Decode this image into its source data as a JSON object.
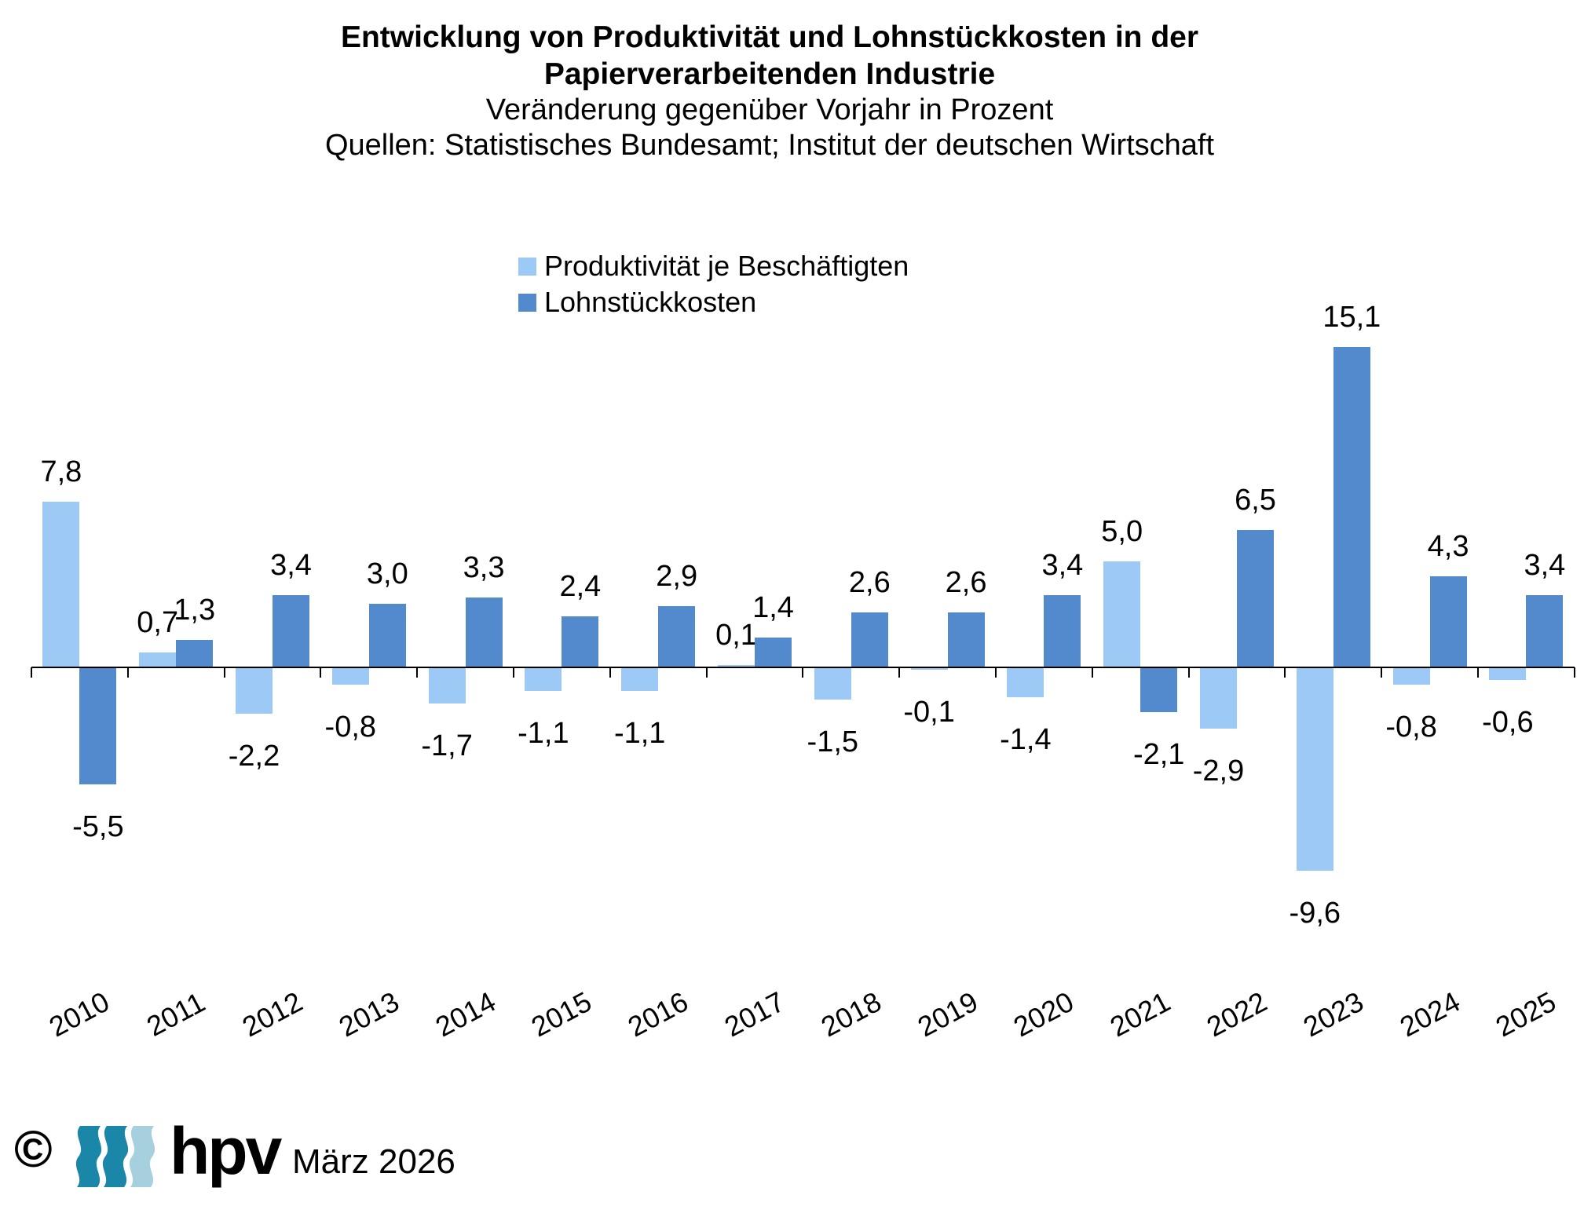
{
  "title": {
    "line1": "Entwicklung von Produktivität und Lohnstückkosten in der",
    "line2": "Papierverarbeitenden Industrie",
    "subtitle": "Veränderung gegenüber Vorjahr in Prozent",
    "source": "Quellen: Statistisches Bundesamt; Institut der deutschen Wirtschaft"
  },
  "legend": [
    {
      "label": "Produktivität je Beschäftigten",
      "color": "#9DC9F6"
    },
    {
      "label": "Lohnstückkosten",
      "color": "#5389CD"
    }
  ],
  "chart_data": {
    "type": "bar",
    "title": "Entwicklung von Produktivität und Lohnstückkosten in der Papierverarbeitenden Industrie",
    "subtitle": "Veränderung gegenüber Vorjahr in Prozent",
    "source": "Quellen: Statistisches Bundesamt; Institut der deutschen Wirtschaft",
    "categories": [
      "2010",
      "2011",
      "2012",
      "2013",
      "2014",
      "2015",
      "2016",
      "2017",
      "2018",
      "2019",
      "2020",
      "2021",
      "2022",
      "2023",
      "2024",
      "2025"
    ],
    "series": [
      {
        "name": "Produktivität je Beschäftigten",
        "color": "#9DC9F6",
        "values": [
          7.8,
          0.7,
          -2.2,
          -0.8,
          -1.7,
          -1.1,
          -1.1,
          0.1,
          -1.5,
          -0.1,
          -1.4,
          5.0,
          -2.9,
          -9.6,
          -0.8,
          -0.6
        ],
        "labels": [
          "7,8",
          "0,7",
          "-2,2",
          "-0,8",
          "-1,7",
          "-1,1",
          "-1,1",
          "0,1",
          "-1,5",
          "-0,1",
          "-1,4",
          "5,0",
          "-2,9",
          "-9,6",
          "-0,8",
          "-0,6"
        ]
      },
      {
        "name": "Lohnstückkosten",
        "color": "#5389CD",
        "values": [
          -5.5,
          1.3,
          3.4,
          3.0,
          3.3,
          2.4,
          2.9,
          1.4,
          2.6,
          2.6,
          3.4,
          -2.1,
          6.5,
          15.1,
          4.3,
          3.4
        ],
        "labels": [
          "-5,5",
          "1,3",
          "3,4",
          "3,0",
          "3,3",
          "2,4",
          "2,9",
          "1,4",
          "2,6",
          "2,6",
          "3,4",
          "-2,1",
          "6,5",
          "15,1",
          "4,3",
          "3,4"
        ]
      }
    ],
    "ylim": [
      -10,
      16
    ],
    "grid": false,
    "value_labels_shown": true,
    "decimal_separator": "comma",
    "legend_position": "top-center",
    "x_tick_rotation_deg": -28
  },
  "footer": {
    "copyright": "©",
    "logo_text": "hpv",
    "date": "März 2026",
    "wave_colors": [
      "#1A87A8",
      "#1A87A8",
      "#A7D0DF"
    ]
  }
}
